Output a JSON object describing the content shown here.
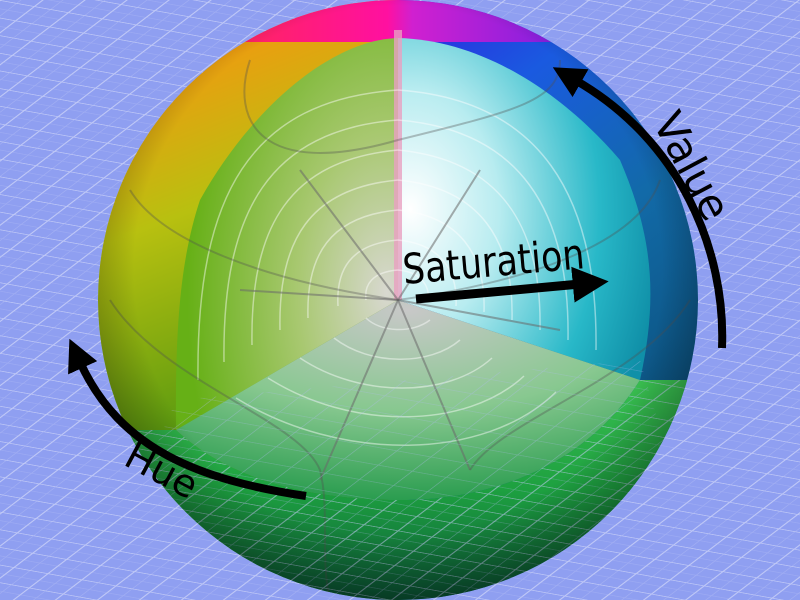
{
  "labels": {
    "value": "Value",
    "saturation": "Saturation",
    "hue": "Hue"
  },
  "colors": {
    "background": "#8f9ff1",
    "grid": "#c3cbf6",
    "arrow": "#000000",
    "hue_top": "#ff00a0",
    "hue_cyan": "#20c0d0",
    "hue_blue": "#1a3de0",
    "hue_yellow": "#e8c020",
    "hue_green": "#28b030",
    "center_white": "#ffffff"
  },
  "icons": {
    "value_arrow": "curved-arrow-icon",
    "saturation_arrow": "straight-arrow-icon",
    "hue_arrow": "curved-arrow-icon"
  }
}
